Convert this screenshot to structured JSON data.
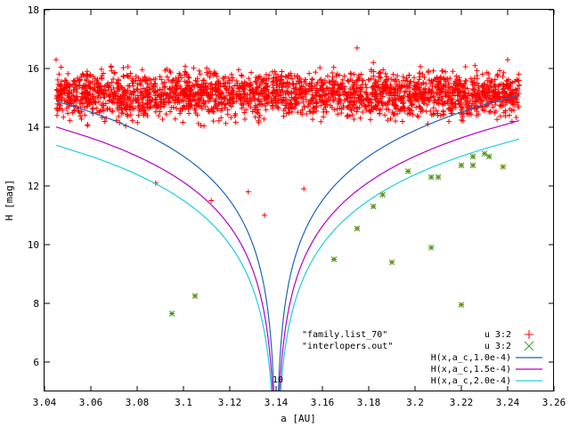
{
  "chart_data": {
    "type": "scatter",
    "title": "",
    "xlabel": "a [AU]",
    "ylabel": "H [mag]",
    "xlim": [
      3.04,
      3.26
    ],
    "ylim": [
      5,
      18
    ],
    "xticks": [
      "3.04",
      "3.06",
      "3.08",
      "3.1",
      "3.12",
      "3.14",
      "3.16",
      "3.18",
      "3.2",
      "3.22",
      "3.24",
      "3.26"
    ],
    "yticks": [
      "6",
      "8",
      "10",
      "12",
      "14",
      "16",
      "18"
    ],
    "grid": false,
    "legend_position": "bottom-right",
    "annotations": [
      {
        "text": "\"family.list_70\""
      },
      {
        "text": "\"interlopers.out\""
      },
      {
        "text": "10"
      }
    ],
    "series": [
      {
        "name": "u 3:2",
        "marker": "plus",
        "color": "#ff0000",
        "approx_count": 2500,
        "a_range": [
          3.045,
          3.245
        ],
        "H_range": [
          11.0,
          16.7
        ],
        "outliers": [
          {
            "a": 3.135,
            "H": 11.0
          },
          {
            "a": 3.112,
            "H": 11.5
          },
          {
            "a": 3.152,
            "H": 11.9
          },
          {
            "a": 3.088,
            "H": 12.1
          },
          {
            "a": 3.128,
            "H": 11.8
          },
          {
            "a": 3.175,
            "H": 16.7
          },
          {
            "a": 3.045,
            "H": 16.3
          },
          {
            "a": 3.24,
            "H": 16.3
          }
        ]
      },
      {
        "name": "u 3:2",
        "marker": "x",
        "color": "#808000",
        "points": [
          {
            "a": 3.095,
            "H": 7.65
          },
          {
            "a": 3.105,
            "H": 8.25
          },
          {
            "a": 3.165,
            "H": 9.5
          },
          {
            "a": 3.175,
            "H": 10.55
          },
          {
            "a": 3.182,
            "H": 11.3
          },
          {
            "a": 3.186,
            "H": 11.7
          },
          {
            "a": 3.19,
            "H": 9.4
          },
          {
            "a": 3.197,
            "H": 12.5
          },
          {
            "a": 3.207,
            "H": 12.3
          },
          {
            "a": 3.21,
            "H": 12.3
          },
          {
            "a": 3.207,
            "H": 9.9
          },
          {
            "a": 3.22,
            "H": 7.95
          },
          {
            "a": 3.22,
            "H": 12.7
          },
          {
            "a": 3.225,
            "H": 13.0
          },
          {
            "a": 3.225,
            "H": 12.7
          },
          {
            "a": 3.23,
            "H": 13.1
          },
          {
            "a": 3.232,
            "H": 13.0
          },
          {
            "a": 3.238,
            "H": 12.65
          }
        ]
      },
      {
        "name": "H(x,a_c,1.0e-4)",
        "type": "line",
        "color": "#1e64b4",
        "a_c": 3.14,
        "coef": 0.0001
      },
      {
        "name": "H(x,a_c,1.5e-4)",
        "type": "line",
        "color": "#b400c8",
        "a_c": 3.14,
        "coef": 0.00015
      },
      {
        "name": "H(x,a_c,2.0e-4)",
        "type": "line",
        "color": "#1ecde1",
        "a_c": 3.14,
        "coef": 0.0002
      }
    ]
  }
}
